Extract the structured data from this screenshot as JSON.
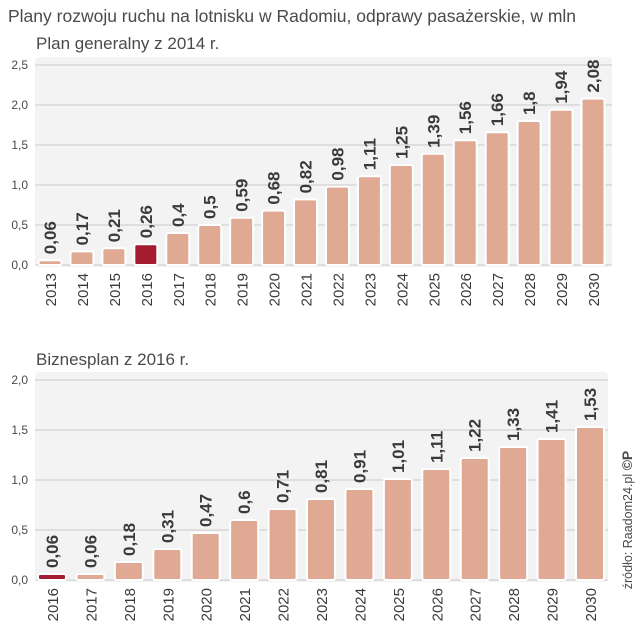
{
  "title": "Plany rozwoju ruchu na lotnisku w Radomiu, odprawy pasażerskie, w mln",
  "source": "źródło: Raadom24.pl",
  "source_mark": "©P",
  "colors": {
    "bar": "#dfa994",
    "highlight": "#a51c30",
    "panel": "#f3f3f3",
    "text": "#3a3a3a"
  },
  "chart_data": [
    {
      "type": "bar",
      "title": "Plan generalny z 2014 r.",
      "categories": [
        "2013",
        "2014",
        "2015",
        "2016",
        "2017",
        "2018",
        "2019",
        "2020",
        "2021",
        "2022",
        "2023",
        "2024",
        "2025",
        "2026",
        "2027",
        "2028",
        "2029",
        "2030"
      ],
      "values": [
        0.06,
        0.17,
        0.21,
        0.26,
        0.4,
        0.5,
        0.59,
        0.68,
        0.82,
        0.98,
        1.11,
        1.25,
        1.39,
        1.56,
        1.66,
        1.8,
        1.94,
        2.08
      ],
      "labels": [
        "0,06",
        "0,17",
        "0,21",
        "0,26",
        "0,4",
        "0,5",
        "0,59",
        "0,68",
        "0,82",
        "0,98",
        "1,11",
        "1,25",
        "1,39",
        "1,56",
        "1,66",
        "1,8",
        "1,94",
        "2,08"
      ],
      "highlight_index": 3,
      "yticks": [
        0,
        0.5,
        1.0,
        1.5,
        2.0,
        2.5
      ],
      "ytick_labels": [
        "0,0",
        "0,5",
        "1,0",
        "1,5",
        "2,0",
        "2,5"
      ],
      "ylim": [
        0,
        2.5
      ],
      "xlabel": "",
      "ylabel": ""
    },
    {
      "type": "bar",
      "title": "Biznesplan z 2016 r.",
      "categories": [
        "2016",
        "2017",
        "2018",
        "2019",
        "2020",
        "2021",
        "2022",
        "2023",
        "2024",
        "2025",
        "2026",
        "2027",
        "2028",
        "2029",
        "2030"
      ],
      "values": [
        0.06,
        0.06,
        0.18,
        0.31,
        0.47,
        0.6,
        0.71,
        0.81,
        0.91,
        1.01,
        1.11,
        1.22,
        1.33,
        1.41,
        1.53
      ],
      "labels": [
        "0,06",
        "0,06",
        "0,18",
        "0,31",
        "0,47",
        "0,6",
        "0,71",
        "0,81",
        "0,91",
        "1,01",
        "1,11",
        "1,22",
        "1,33",
        "1,41",
        "1,53"
      ],
      "highlight_index": 0,
      "yticks": [
        0,
        0.5,
        1.0,
        1.5,
        2.0
      ],
      "ytick_labels": [
        "0,0",
        "0,5",
        "1,0",
        "1,5",
        "2,0"
      ],
      "ylim": [
        0,
        2.0
      ],
      "xlabel": "",
      "ylabel": ""
    }
  ]
}
